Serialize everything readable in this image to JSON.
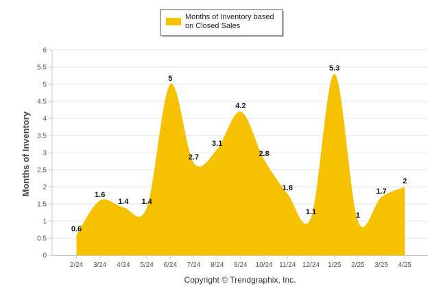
{
  "chart_data": {
    "type": "area",
    "categories": [
      "2/24",
      "3/24",
      "4/24",
      "5/24",
      "6/24",
      "7/24",
      "8/24",
      "9/24",
      "10/24",
      "11/24",
      "12/24",
      "1/25",
      "2/25",
      "3/25",
      "4/25"
    ],
    "series": [
      {
        "name_lines": [
          "Months of Inventory based",
          "on Closed Sales"
        ],
        "values": [
          0.6,
          1.6,
          1.4,
          1.4,
          5,
          2.7,
          3.1,
          4.2,
          2.8,
          1.8,
          1.1,
          5.3,
          1,
          1.7,
          2
        ],
        "labels": [
          "0.6",
          "1.6",
          "1.4",
          "1.4",
          "5",
          "2.7",
          "3.1",
          "4.2",
          "2.8",
          "1.8",
          "1.1",
          "5.3",
          "1",
          "1.7",
          "2"
        ]
      }
    ],
    "ylabel": "Months of Inventory",
    "ylim": [
      0,
      6
    ],
    "yticks": [
      "0",
      "0.5",
      "1",
      "1.5",
      "2",
      "2.5",
      "3",
      "3.5",
      "4",
      "4.5",
      "5",
      "5.5",
      "6"
    ],
    "grid": true,
    "legend_position": "top-center",
    "color": "#f6c100",
    "footer": "Copyright © Trendgraphix, Inc."
  }
}
